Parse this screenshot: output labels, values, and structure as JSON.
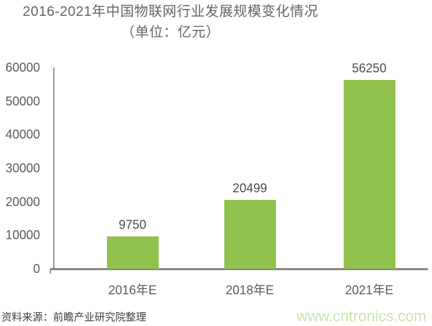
{
  "title": {
    "line1": "2016-2021年中国物联网行业发展规模变化情况",
    "line2": "（单位：亿元）"
  },
  "chart_data": {
    "type": "bar",
    "title": "2016-2021年中国物联网行业发展规模变化情况",
    "subtitle": "（单位：亿元）",
    "categories": [
      "2016年E",
      "2018年E",
      "2021年E"
    ],
    "values": [
      9750,
      20499,
      56250
    ],
    "data_labels": [
      "9750",
      "20499",
      "56250"
    ],
    "yticks": [
      0,
      10000,
      20000,
      30000,
      40000,
      50000,
      60000
    ],
    "ylim": [
      0,
      60000
    ],
    "xlabel": "",
    "ylabel": "",
    "grid": false,
    "legend": false,
    "bar_color": "#92c24e",
    "axis_color": "#9a9590",
    "label_color": "#595959"
  },
  "footer": {
    "source": "资料来源：前瞻产业研究院整理",
    "watermark": "www.cntronics.com"
  }
}
